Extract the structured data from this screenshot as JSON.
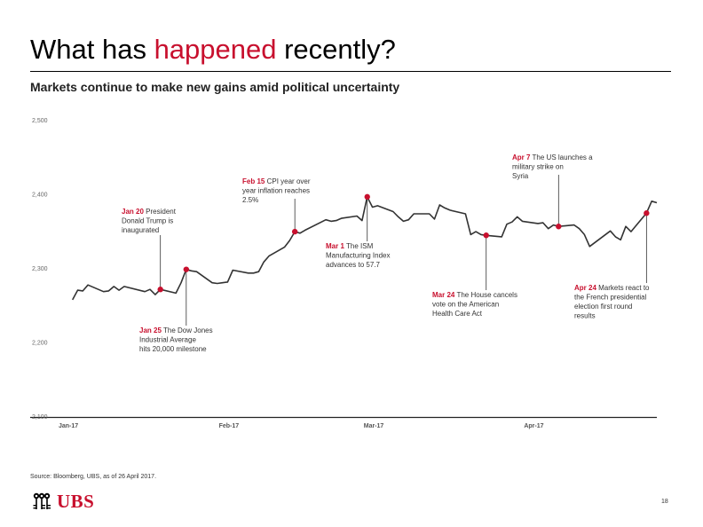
{
  "slide": {
    "title_pre": "What has ",
    "title_accent": "happened",
    "title_post": " recently?",
    "subtitle": "Markets continue to make new gains amid political uncertainty",
    "source": "Source: Bloomberg, UBS, as of 26 April 2017.",
    "logo_text": "UBS",
    "page_number": "18",
    "accent_color": "#c8102e"
  },
  "chart_data": {
    "type": "line",
    "title": "",
    "xlabel": "",
    "ylabel": "",
    "ylim": [
      2100,
      2500
    ],
    "y_ticks": [
      2100,
      2200,
      2300,
      2400,
      2500
    ],
    "y_tick_labels": [
      "2,100",
      "2,200",
      "2,300",
      "2,400",
      "2,500"
    ],
    "x_range": [
      "2017-01-01",
      "2017-04-26"
    ],
    "x_ticks": [
      {
        "date": "2017-01-01",
        "label": "Jan-17"
      },
      {
        "date": "2017-02-01",
        "label": "Feb-17"
      },
      {
        "date": "2017-03-01",
        "label": "Mar-17"
      },
      {
        "date": "2017-04-01",
        "label": "Apr-17"
      }
    ],
    "line_color": "#333333",
    "marker_color": "#c8102e",
    "grid": false,
    "series": [
      {
        "dates": [
          "2017-01-03",
          "2017-01-04",
          "2017-01-05",
          "2017-01-06",
          "2017-01-09",
          "2017-01-10",
          "2017-01-11",
          "2017-01-12",
          "2017-01-13",
          "2017-01-17",
          "2017-01-18",
          "2017-01-19",
          "2017-01-20",
          "2017-01-23",
          "2017-01-24",
          "2017-01-25",
          "2017-01-26",
          "2017-01-27",
          "2017-01-30",
          "2017-01-31",
          "2017-02-01",
          "2017-02-02",
          "2017-02-03",
          "2017-02-06",
          "2017-02-07",
          "2017-02-08",
          "2017-02-09",
          "2017-02-10",
          "2017-02-13",
          "2017-02-14",
          "2017-02-15",
          "2017-02-16",
          "2017-02-17",
          "2017-02-21",
          "2017-02-22",
          "2017-02-23",
          "2017-02-24",
          "2017-02-27",
          "2017-02-28",
          "2017-03-01",
          "2017-03-02",
          "2017-03-03",
          "2017-03-06",
          "2017-03-07",
          "2017-03-08",
          "2017-03-09",
          "2017-03-10",
          "2017-03-13",
          "2017-03-14",
          "2017-03-15",
          "2017-03-16",
          "2017-03-17",
          "2017-03-20",
          "2017-03-21",
          "2017-03-22",
          "2017-03-23",
          "2017-03-24",
          "2017-03-27",
          "2017-03-28",
          "2017-03-29",
          "2017-03-30",
          "2017-03-31",
          "2017-04-03",
          "2017-04-04",
          "2017-04-05",
          "2017-04-06",
          "2017-04-07",
          "2017-04-10",
          "2017-04-11",
          "2017-04-12",
          "2017-04-13",
          "2017-04-17",
          "2017-04-18",
          "2017-04-19",
          "2017-04-20",
          "2017-04-21",
          "2017-04-24",
          "2017-04-25",
          "2017-04-26"
        ],
        "values": [
          2257,
          2270,
          2269,
          2277,
          2268,
          2269,
          2275,
          2270,
          2275,
          2268,
          2271,
          2264,
          2271,
          2266,
          2280,
          2298,
          2296,
          2295,
          2280,
          2279,
          2280,
          2281,
          2297,
          2293,
          2293,
          2295,
          2308,
          2316,
          2328,
          2337,
          2349,
          2347,
          2351,
          2365,
          2363,
          2364,
          2367,
          2370,
          2364,
          2396,
          2382,
          2384,
          2376,
          2369,
          2363,
          2365,
          2373,
          2373,
          2366,
          2385,
          2381,
          2378,
          2373,
          2345,
          2349,
          2345,
          2344,
          2342,
          2359,
          2362,
          2369,
          2363,
          2360,
          2361,
          2353,
          2358,
          2356,
          2358,
          2353,
          2345,
          2329,
          2350,
          2342,
          2338,
          2356,
          2349,
          2374,
          2390,
          2388
        ]
      }
    ],
    "annotations": [
      {
        "date": "2017-01-20",
        "value": 2271,
        "date_label": "Jan 20",
        "text": "President Donald Trump is inaugurated"
      },
      {
        "date": "2017-01-25",
        "value": 2298,
        "date_label": "Jan 25",
        "text": "The Dow Jones Industrial Average hits 20,000 milestone"
      },
      {
        "date": "2017-02-15",
        "value": 2349,
        "date_label": "Feb 15",
        "text": "CPI year over year inflation reaches 2.5%"
      },
      {
        "date": "2017-03-01",
        "value": 2396,
        "date_label": "Mar 1",
        "text": "The ISM Manufacturing Index advances to 57.7"
      },
      {
        "date": "2017-03-24",
        "value": 2344,
        "date_label": "Mar 24",
        "text": "The House cancels vote on the American Health Care Act"
      },
      {
        "date": "2017-04-07",
        "value": 2356,
        "date_label": "Apr 7",
        "text": "The US launches a military strike on Syria"
      },
      {
        "date": "2017-04-24",
        "value": 2374,
        "date_label": "Apr 24",
        "text": "Markets react to the French presidential election first round results"
      }
    ]
  }
}
